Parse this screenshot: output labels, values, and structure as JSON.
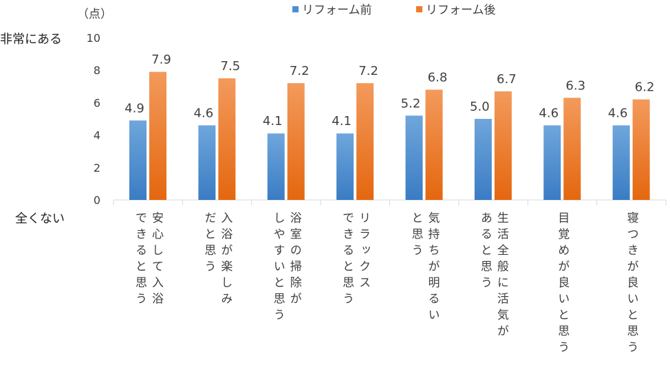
{
  "chart_data": {
    "type": "bar",
    "unit_label": "（点）",
    "y_top_label": "非常にある",
    "y_bottom_label": "全くない",
    "ylim": [
      0,
      10
    ],
    "yticks": [
      "0",
      "2",
      "4",
      "6",
      "8",
      "10"
    ],
    "grid": false,
    "legend_position": "top",
    "categories": [
      [
        "安心して入浴",
        "できると思う"
      ],
      [
        "入浴が楽しみ",
        "だと思う"
      ],
      [
        "浴室の掃除が",
        "しやすいと思う"
      ],
      [
        "リラックス",
        "できると思う"
      ],
      [
        "気持ちが明るい",
        "と思う"
      ],
      [
        "生活全般に活気が",
        "あると思う"
      ],
      [
        "目覚めが良いと思う"
      ],
      [
        "寝つきが良いと思う"
      ]
    ],
    "series": [
      {
        "name": "リフォーム前",
        "color": "#4F8FD0",
        "values": [
          4.9,
          4.6,
          4.1,
          4.1,
          5.2,
          5.0,
          4.6,
          4.6
        ],
        "labels": [
          "4.9",
          "4.6",
          "4.1",
          "4.1",
          "5.2",
          "5.0",
          "4.6",
          "4.6"
        ]
      },
      {
        "name": "リフォーム後",
        "color": "#EE7A2C",
        "values": [
          7.9,
          7.5,
          7.2,
          7.2,
          6.8,
          6.7,
          6.3,
          6.2
        ],
        "labels": [
          "7.9",
          "7.5",
          "7.2",
          "7.2",
          "6.8",
          "6.7",
          "6.3",
          "6.2"
        ]
      }
    ]
  }
}
